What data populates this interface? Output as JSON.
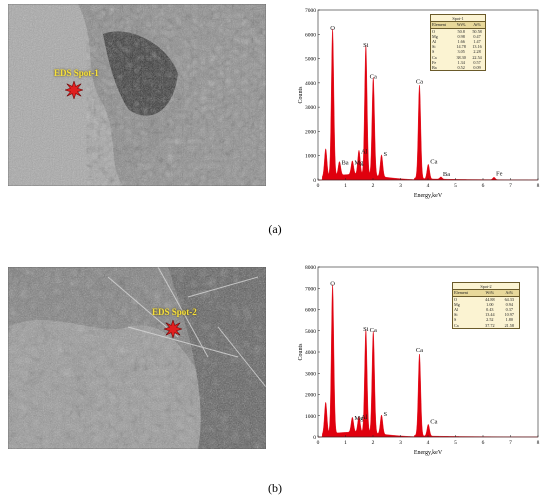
{
  "panels": [
    {
      "caption": "(a)",
      "spot_label": "EDS Spot-1",
      "table": {
        "title": "Spot-1",
        "headers": [
          "Element",
          "Wt%",
          "At%"
        ],
        "rows": [
          [
            "O",
            "50.8",
            "50.58"
          ],
          [
            "Mg",
            "0.98",
            "0.47"
          ],
          [
            "Al",
            "1.66",
            "1.47"
          ],
          [
            "Si",
            "14.78",
            "13.16"
          ],
          [
            "S",
            "3.05",
            "2.28"
          ],
          [
            "Ca",
            "38.30",
            "22.54"
          ],
          [
            "Fe",
            "1.34",
            "0.57"
          ],
          [
            "Ba",
            "0.52",
            "0.09"
          ]
        ]
      }
    },
    {
      "caption": "(b)",
      "spot_label": "EDS Spot-2",
      "table": {
        "title": "Spot-2",
        "headers": [
          "Element",
          "Wt%",
          "At%"
        ],
        "rows": [
          [
            "O",
            "44.88",
            "64.33"
          ],
          [
            "Mg",
            "1.00",
            "0.94"
          ],
          [
            "Al",
            "0.43",
            "0.37"
          ],
          [
            "Si",
            "13.44",
            "10.97"
          ],
          [
            "S",
            "2.52",
            "1.80"
          ],
          [
            "Ca",
            "37.72",
            "21.58"
          ]
        ]
      }
    }
  ],
  "chart_data": [
    {
      "type": "area",
      "xlabel": "Energy,keV",
      "ylabel": "Counts",
      "xlim": [
        0,
        8
      ],
      "ylim": [
        0,
        7000
      ],
      "xticks": [
        0,
        1,
        2,
        3,
        4,
        5,
        6,
        7,
        8
      ],
      "yticks": [
        0,
        1000,
        2000,
        3000,
        4000,
        5000,
        6000,
        7000
      ],
      "color": "#e0000e",
      "peaks": [
        {
          "x": 0.28,
          "y": 1150,
          "label": ""
        },
        {
          "x": 0.53,
          "y": 6050,
          "label": "O"
        },
        {
          "x": 0.78,
          "y": 560,
          "label": "Ba"
        },
        {
          "x": 1.25,
          "y": 560,
          "label": "Mg"
        },
        {
          "x": 1.49,
          "y": 1000,
          "label": "Al"
        },
        {
          "x": 1.74,
          "y": 5350,
          "label": "Si"
        },
        {
          "x": 2.01,
          "y": 4050,
          "label": "Ca"
        },
        {
          "x": 2.31,
          "y": 900,
          "label": "S"
        },
        {
          "x": 3.69,
          "y": 3850,
          "label": "Ca"
        },
        {
          "x": 4.01,
          "y": 600,
          "label": "Ca"
        },
        {
          "x": 4.47,
          "y": 90,
          "label": "Ba"
        },
        {
          "x": 6.4,
          "y": 100,
          "label": "Fe"
        }
      ]
    },
    {
      "type": "area",
      "xlabel": "Energy,keV",
      "ylabel": "Counts",
      "xlim": [
        0,
        8
      ],
      "ylim": [
        0,
        8000
      ],
      "xticks": [
        0,
        1,
        2,
        3,
        4,
        5,
        6,
        7,
        8
      ],
      "yticks": [
        0,
        1000,
        2000,
        3000,
        4000,
        5000,
        6000,
        7000,
        8000
      ],
      "color": "#e0000e",
      "peaks": [
        {
          "x": 0.28,
          "y": 1500,
          "label": ""
        },
        {
          "x": 0.53,
          "y": 7000,
          "label": "O"
        },
        {
          "x": 1.25,
          "y": 700,
          "label": "Mg"
        },
        {
          "x": 1.49,
          "y": 750,
          "label": "Al"
        },
        {
          "x": 1.74,
          "y": 4850,
          "label": "Si"
        },
        {
          "x": 2.01,
          "y": 4800,
          "label": "Ca"
        },
        {
          "x": 2.31,
          "y": 900,
          "label": "S"
        },
        {
          "x": 3.69,
          "y": 3850,
          "label": "Ca"
        },
        {
          "x": 4.01,
          "y": 550,
          "label": "Ca"
        }
      ]
    }
  ]
}
